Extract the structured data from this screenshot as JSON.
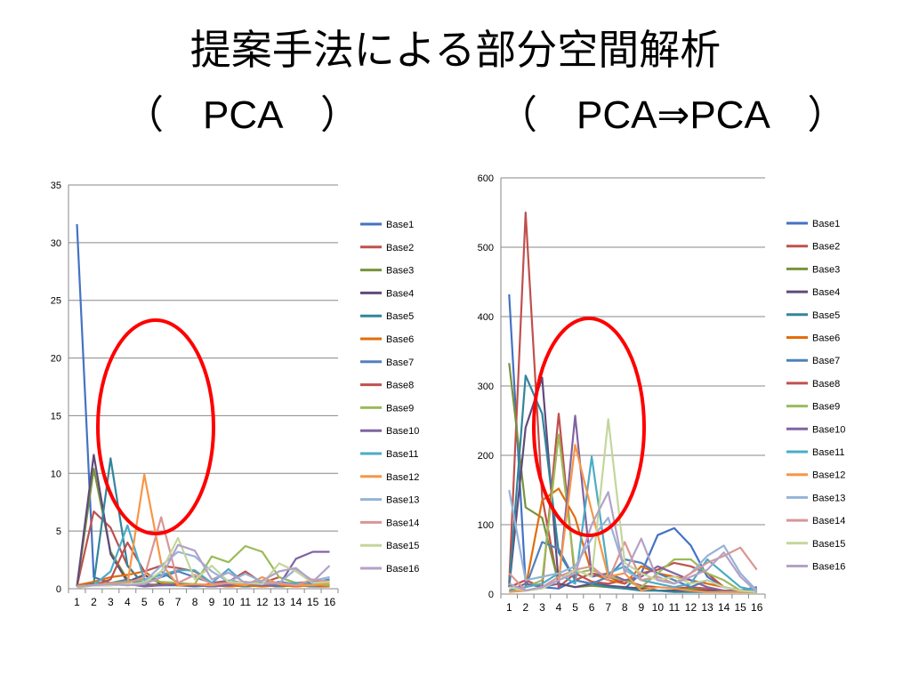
{
  "slide": {
    "title": "提案手法による部分空間解析",
    "subtitle_left": "（　PCA　）",
    "subtitle_right": "（　PCA⇒PCA　）"
  },
  "highlight_color": "#ff0000",
  "chart_data": [
    {
      "type": "line",
      "title": "",
      "xlabel": "",
      "ylabel": "",
      "ylim": [
        0,
        35
      ],
      "yticks": [
        0,
        5,
        10,
        15,
        20,
        25,
        30,
        35
      ],
      "grid": true,
      "legend_position": "right",
      "categories": [
        "1",
        "2",
        "3",
        "4",
        "5",
        "6",
        "7",
        "8",
        "9",
        "10",
        "11",
        "12",
        "13",
        "14",
        "15",
        "16"
      ],
      "series": [
        {
          "name": "Base1",
          "color": "#4472c4",
          "values": [
            31.6,
            1.0,
            0.5,
            0.3,
            0.4,
            0.3,
            0.3,
            0.2,
            0.3,
            0.2,
            0.3,
            0.3,
            0.2,
            0.3,
            0.2,
            0.2
          ]
        },
        {
          "name": "Base2",
          "color": "#c0504d",
          "values": [
            0.2,
            6.7,
            5.3,
            2.0,
            0.3,
            0.4,
            0.5,
            0.3,
            0.4,
            0.2,
            0.3,
            0.2,
            0.3,
            0.2,
            0.3,
            0.2
          ]
        },
        {
          "name": "Base3",
          "color": "#77933c",
          "values": [
            0.2,
            10.4,
            3.2,
            0.8,
            0.2,
            0.4,
            0.3,
            0.3,
            0.2,
            0.4,
            0.2,
            0.3,
            0.2,
            0.3,
            0.2,
            0.3
          ]
        },
        {
          "name": "Base4",
          "color": "#604a7b",
          "values": [
            0.2,
            11.6,
            3.0,
            0.6,
            1.2,
            0.4,
            0.3,
            0.3,
            0.2,
            0.3,
            0.2,
            0.3,
            0.2,
            0.3,
            0.2,
            0.2
          ]
        },
        {
          "name": "Base5",
          "color": "#31859c",
          "values": [
            0.2,
            0.5,
            11.3,
            2.0,
            0.3,
            1.5,
            0.5,
            0.3,
            0.2,
            0.3,
            0.2,
            0.3,
            0.2,
            0.3,
            0.2,
            0.3
          ]
        },
        {
          "name": "Base6",
          "color": "#e46c0a",
          "values": [
            0.3,
            0.6,
            1.0,
            1.2,
            1.5,
            0.5,
            0.3,
            0.4,
            0.3,
            0.2,
            0.3,
            0.2,
            0.3,
            0.2,
            0.3,
            0.2
          ]
        },
        {
          "name": "Base7",
          "color": "#4f81bd",
          "values": [
            0.2,
            0.3,
            0.5,
            0.8,
            0.5,
            1.0,
            1.5,
            1.0,
            0.5,
            0.7,
            0.5,
            0.3,
            0.6,
            0.4,
            0.5,
            0.8
          ]
        },
        {
          "name": "Base8",
          "color": "#c0504d",
          "values": [
            0.1,
            0.3,
            0.8,
            4.0,
            1.5,
            2.0,
            1.8,
            1.5,
            0.5,
            0.6,
            1.5,
            0.5,
            1.0,
            0.5,
            0.6,
            0.3
          ]
        },
        {
          "name": "Base9",
          "color": "#9bbb59",
          "values": [
            0.2,
            0.3,
            0.5,
            0.6,
            0.8,
            0.6,
            0.5,
            0.4,
            2.8,
            2.3,
            3.7,
            3.2,
            1.0,
            0.5,
            0.4,
            0.3
          ]
        },
        {
          "name": "Base10",
          "color": "#8064a2",
          "values": [
            0.2,
            0.3,
            0.3,
            0.4,
            0.2,
            0.3,
            0.4,
            0.3,
            0.2,
            0.3,
            0.5,
            0.3,
            0.3,
            2.6,
            3.2,
            3.2
          ]
        },
        {
          "name": "Base11",
          "color": "#4bacc6",
          "values": [
            0.2,
            0.3,
            1.5,
            5.5,
            0.8,
            1.2,
            1.6,
            1.6,
            0.5,
            1.7,
            0.4,
            0.5,
            0.4,
            0.5,
            0.4,
            0.7
          ]
        },
        {
          "name": "Base12",
          "color": "#f79646",
          "values": [
            0.1,
            0.3,
            0.5,
            0.4,
            9.9,
            2.2,
            0.3,
            0.4,
            0.3,
            0.5,
            0.3,
            1.0,
            0.4,
            0.3,
            0.3,
            0.5
          ]
        },
        {
          "name": "Base13",
          "color": "#95b3d7",
          "values": [
            0.2,
            0.3,
            0.4,
            0.3,
            0.6,
            2.0,
            3.2,
            2.8,
            1.5,
            0.6,
            1.3,
            0.6,
            0.5,
            1.7,
            0.7,
            1.0
          ]
        },
        {
          "name": "Base14",
          "color": "#d99694",
          "values": [
            0.2,
            0.3,
            0.4,
            0.5,
            1.0,
            6.2,
            0.5,
            1.2,
            0.4,
            0.5,
            0.6,
            0.4,
            0.5,
            0.3,
            0.8,
            0.6
          ]
        },
        {
          "name": "Base15",
          "color": "#c3d69b",
          "values": [
            0.1,
            0.3,
            0.3,
            0.4,
            0.5,
            1.5,
            4.4,
            0.8,
            2.0,
            0.6,
            0.5,
            0.4,
            2.2,
            1.5,
            0.5,
            0.6
          ]
        },
        {
          "name": "Base16",
          "color": "#b3a2c7",
          "values": [
            0.2,
            0.3,
            0.4,
            0.3,
            0.4,
            1.0,
            3.8,
            3.3,
            0.8,
            1.4,
            0.5,
            0.7,
            1.5,
            1.8,
            0.6,
            2.0
          ]
        }
      ]
    },
    {
      "type": "line",
      "title": "",
      "xlabel": "",
      "ylabel": "",
      "ylim": [
        0,
        600
      ],
      "yticks": [
        0,
        100,
        200,
        300,
        400,
        500,
        600
      ],
      "grid": true,
      "legend_position": "right",
      "categories": [
        "1",
        "2",
        "3",
        "4",
        "5",
        "6",
        "7",
        "8",
        "9",
        "10",
        "11",
        "12",
        "13",
        "14",
        "15",
        "16"
      ],
      "series": [
        {
          "name": "Base1",
          "color": "#4472c4",
          "values": [
            432,
            15,
            10,
            8,
            20,
            15,
            12,
            8,
            30,
            85,
            95,
            70,
            25,
            10,
            5,
            8
          ]
        },
        {
          "name": "Base2",
          "color": "#c0504d",
          "values": [
            15,
            550,
            140,
            10,
            30,
            18,
            15,
            20,
            12,
            10,
            8,
            10,
            8,
            5,
            5,
            3
          ]
        },
        {
          "name": "Base3",
          "color": "#77933c",
          "values": [
            333,
            125,
            110,
            15,
            10,
            12,
            10,
            8,
            10,
            5,
            5,
            8,
            5,
            5,
            3,
            3
          ]
        },
        {
          "name": "Base4",
          "color": "#604a7b",
          "values": [
            10,
            240,
            312,
            15,
            10,
            15,
            12,
            10,
            8,
            5,
            5,
            5,
            5,
            5,
            5,
            10
          ]
        },
        {
          "name": "Base5",
          "color": "#31859c",
          "values": [
            10,
            315,
            260,
            60,
            20,
            15,
            10,
            8,
            5,
            5,
            3,
            3,
            3,
            3,
            3,
            3
          ]
        },
        {
          "name": "Base6",
          "color": "#e46c0a",
          "values": [
            5,
            10,
            135,
            152,
            110,
            30,
            20,
            15,
            40,
            30,
            25,
            20,
            15,
            10,
            5,
            3
          ]
        },
        {
          "name": "Base7",
          "color": "#4f81bd",
          "values": [
            5,
            10,
            75,
            65,
            20,
            15,
            25,
            50,
            45,
            30,
            20,
            10,
            20,
            10,
            5,
            10
          ]
        },
        {
          "name": "Base8",
          "color": "#c0504d",
          "values": [
            10,
            20,
            10,
            260,
            20,
            30,
            25,
            15,
            30,
            35,
            45,
            40,
            30,
            10,
            5,
            3
          ]
        },
        {
          "name": "Base9",
          "color": "#9bbb59",
          "values": [
            5,
            10,
            20,
            230,
            30,
            35,
            25,
            20,
            10,
            30,
            50,
            50,
            30,
            20,
            5,
            3
          ]
        },
        {
          "name": "Base10",
          "color": "#8064a2",
          "values": [
            5,
            15,
            10,
            15,
            257,
            25,
            30,
            20,
            25,
            40,
            30,
            20,
            10,
            5,
            5,
            3
          ]
        },
        {
          "name": "Base11",
          "color": "#4bacc6",
          "values": [
            5,
            10,
            15,
            30,
            15,
            198,
            30,
            40,
            20,
            15,
            10,
            15,
            50,
            30,
            10,
            5
          ]
        },
        {
          "name": "Base12",
          "color": "#f79646",
          "values": [
            3,
            5,
            10,
            20,
            215,
            120,
            25,
            30,
            5,
            10,
            8,
            5,
            3,
            3,
            3,
            3
          ]
        },
        {
          "name": "Base13",
          "color": "#95b3d7",
          "values": [
            150,
            20,
            25,
            30,
            40,
            80,
            110,
            35,
            20,
            25,
            15,
            30,
            55,
            70,
            30,
            5
          ]
        },
        {
          "name": "Base14",
          "color": "#d99694",
          "values": [
            30,
            5,
            10,
            25,
            35,
            40,
            20,
            75,
            20,
            25,
            15,
            30,
            45,
            55,
            67,
            35
          ]
        },
        {
          "name": "Base15",
          "color": "#c3d69b",
          "values": [
            10,
            5,
            8,
            20,
            35,
            25,
            252,
            45,
            30,
            20,
            25,
            15,
            20,
            10,
            5,
            3
          ]
        },
        {
          "name": "Base16",
          "color": "#b3a2c7",
          "values": [
            15,
            5,
            10,
            20,
            30,
            100,
            147,
            30,
            80,
            20,
            15,
            25,
            35,
            60,
            25,
            3
          ]
        }
      ]
    }
  ]
}
